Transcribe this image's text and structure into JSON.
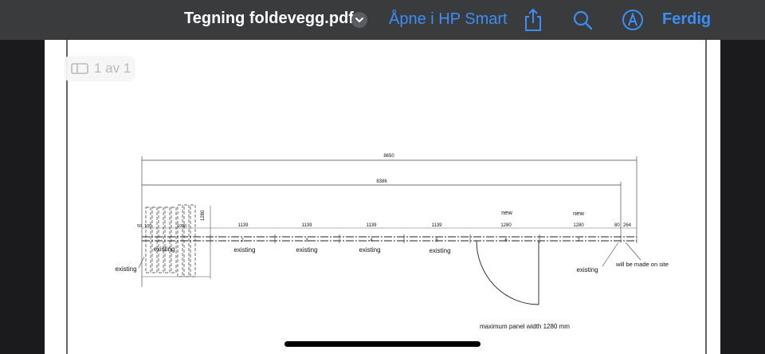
{
  "toolbar": {
    "document_title": "Tegning foldevegg.pdf",
    "open_in_label": "Åpne i HP Smart",
    "done_label": "Ferdig",
    "share_icon": "share-icon",
    "search_icon": "search-icon",
    "markup_icon": "markup-icon",
    "chevron_icon": "chevron-down-icon",
    "accent_color": "#3a8ef6"
  },
  "page_indicator": {
    "label": "1 av 1"
  },
  "drawing": {
    "overall_dimension": "8650",
    "inner_dimension": "8386",
    "small_dims": [
      "50",
      "100",
      "1090"
    ],
    "vertical_dim": "1280",
    "panel_widths": [
      "1139",
      "1139",
      "1139",
      "1139",
      "1280",
      "1280",
      "80",
      "264"
    ],
    "panel_numbers": [
      "2",
      "3",
      "4",
      "5",
      "6",
      "7"
    ],
    "new_labels": [
      "new",
      "new"
    ],
    "existing_labels": [
      "existing",
      "existing",
      "existing",
      "existing",
      "existing",
      "existing",
      "existing"
    ],
    "site_note": "will be made on site",
    "max_panel_note": "maximum panel width 1280 mm"
  }
}
